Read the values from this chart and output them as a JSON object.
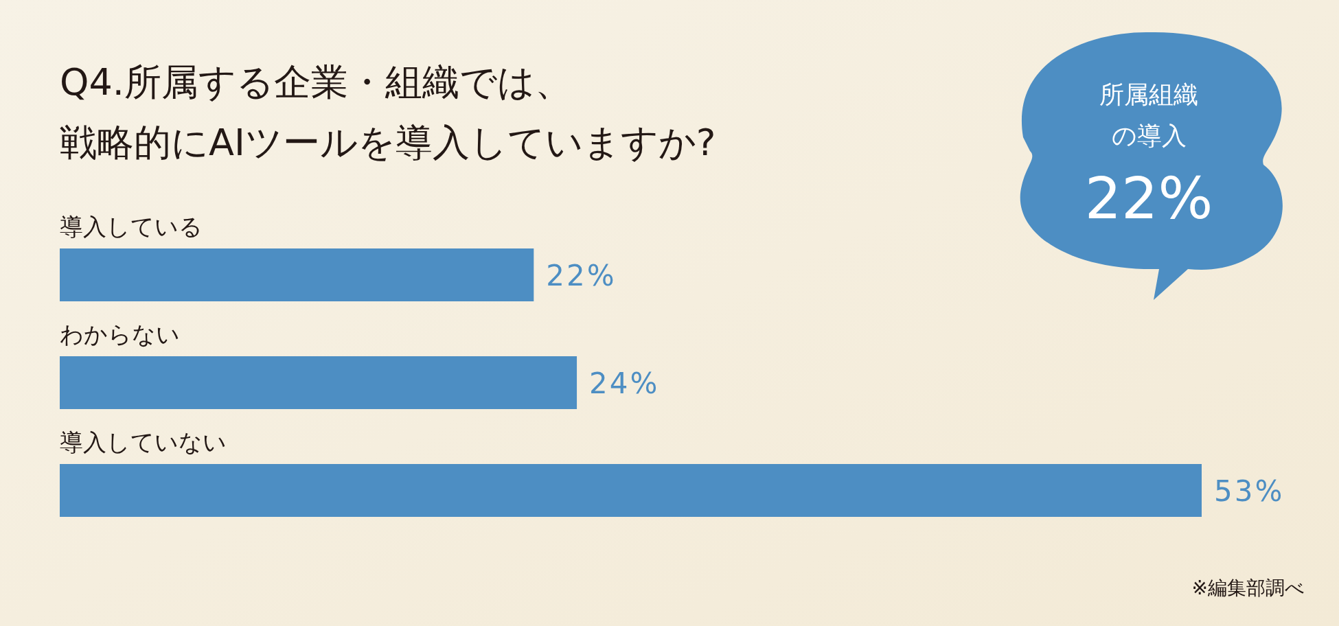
{
  "chart_data": {
    "type": "bar",
    "orientation": "horizontal",
    "title": "Q4.所属する企業・組織では、戦略的にAIツールを導入していますか?",
    "categories": [
      "導入している",
      "わからない",
      "導入していない"
    ],
    "values": [
      22,
      24,
      53
    ],
    "color": "#4d8ec3",
    "value_labels": [
      "22%",
      "24%",
      "53%"
    ],
    "annotations": [
      "所属組織",
      "の導入",
      "22%",
      "※編集部調べ"
    ]
  }
}
